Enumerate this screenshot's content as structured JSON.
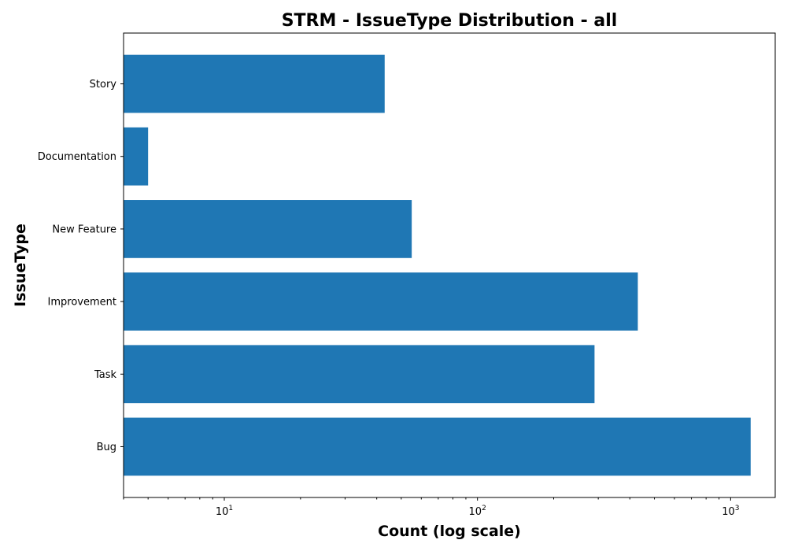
{
  "chart_data": {
    "type": "bar",
    "orientation": "horizontal",
    "title": "STRM - IssueType Distribution - all",
    "xlabel": "Count (log scale)",
    "ylabel": "IssueType",
    "x_scale": "log",
    "xlim": [
      4,
      1500
    ],
    "x_ticks": [
      {
        "value": 10,
        "base": "10",
        "exp": "1"
      },
      {
        "value": 100,
        "base": "10",
        "exp": "2"
      },
      {
        "value": 1000,
        "base": "10",
        "exp": "3"
      }
    ],
    "categories": [
      "Bug",
      "Task",
      "Improvement",
      "New Feature",
      "Documentation",
      "Story"
    ],
    "values": [
      1200,
      290,
      430,
      55,
      5,
      43
    ],
    "bar_color": "#1f77b4",
    "grid": false
  }
}
